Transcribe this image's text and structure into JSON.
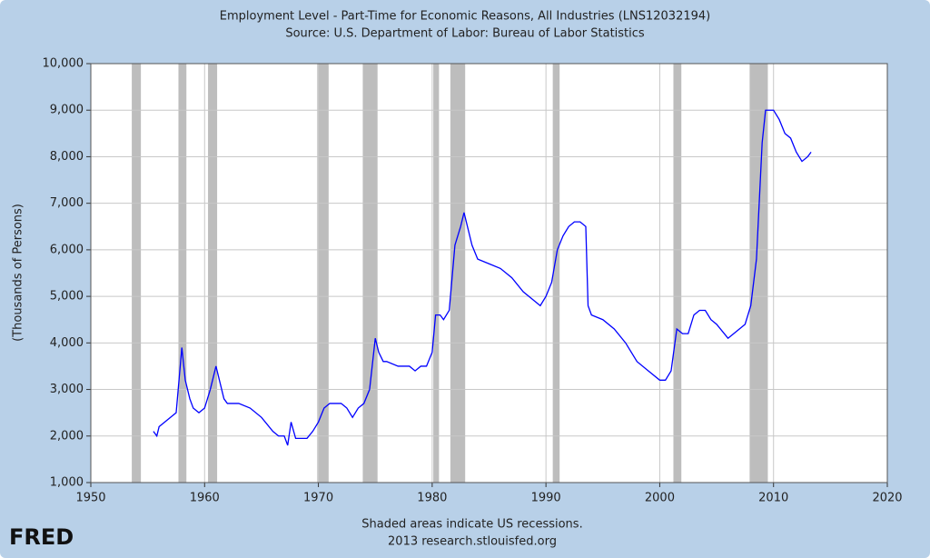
{
  "chart_data": {
    "type": "line",
    "title": "Employment Level - Part-Time for Economic Reasons, All Industries (LNS12032194)",
    "subtitle": "Source: U.S. Department of Labor: Bureau of Labor Statistics",
    "y_label": "(Thousands of Persons)",
    "footnote": "Shaded areas indicate US recessions.",
    "source": "2013 research.stlouisfed.org",
    "logo": "FRED",
    "xlim": [
      1950,
      2020
    ],
    "xticks": [
      1950,
      1960,
      1970,
      1980,
      1990,
      2000,
      2010,
      2020
    ],
    "ylim": [
      1000,
      10000
    ],
    "yticks": [
      {
        "value": 1000,
        "label": "1,000"
      },
      {
        "value": 2000,
        "label": "2,000"
      },
      {
        "value": 3000,
        "label": "3,000"
      },
      {
        "value": 4000,
        "label": "4,000"
      },
      {
        "value": 5000,
        "label": "5,000"
      },
      {
        "value": 6000,
        "label": "6,000"
      },
      {
        "value": 7000,
        "label": "7,000"
      },
      {
        "value": 8000,
        "label": "8,000"
      },
      {
        "value": 9000,
        "label": "9,000"
      },
      {
        "value": 10000,
        "label": "10,000"
      }
    ],
    "grid": true,
    "recession_color": "#bdbdbd",
    "recessions": [
      [
        1953.6,
        1954.4
      ],
      [
        1957.7,
        1958.4
      ],
      [
        1960.3,
        1961.1
      ],
      [
        1969.9,
        1970.9
      ],
      [
        1973.9,
        1975.2
      ],
      [
        1980.1,
        1980.6
      ],
      [
        1981.6,
        1982.9
      ],
      [
        1990.6,
        1991.2
      ],
      [
        2001.2,
        2001.9
      ],
      [
        2007.9,
        2009.5
      ]
    ],
    "series": [
      {
        "name": "LNS12032194",
        "color": "#0000ff",
        "x": [
          1955.5,
          1955.8,
          1956,
          1956.5,
          1957,
          1957.5,
          1958,
          1958.3,
          1958.7,
          1959,
          1959.5,
          1960,
          1960.5,
          1961,
          1961.3,
          1961.7,
          1962,
          1963,
          1964,
          1965,
          1966,
          1966.5,
          1967,
          1967.3,
          1967.6,
          1968,
          1969,
          1969.5,
          1970,
          1970.5,
          1971,
          1972,
          1972.5,
          1973,
          1973.5,
          1974,
          1974.5,
          1975,
          1975.3,
          1975.7,
          1976,
          1977,
          1978,
          1978.5,
          1979,
          1979.5,
          1980,
          1980.3,
          1980.7,
          1981,
          1981.5,
          1982,
          1982.5,
          1982.8,
          1983,
          1983.5,
          1984,
          1985,
          1986,
          1987,
          1988,
          1989,
          1989.5,
          1990,
          1990.5,
          1991,
          1991.5,
          1992,
          1992.5,
          1993,
          1993.5,
          1993.7,
          1994,
          1995,
          1996,
          1997,
          1998,
          1999,
          2000,
          2000.5,
          2001,
          2001.5,
          2002,
          2002.5,
          2003,
          2003.5,
          2004,
          2004.5,
          2005,
          2006,
          2006.5,
          2007,
          2007.5,
          2008,
          2008.5,
          2009,
          2009.3,
          2010,
          2010.5,
          2011,
          2011.5,
          2012,
          2012.5,
          2013,
          2013.3
        ],
        "values": [
          2100,
          2000,
          2200,
          2300,
          2400,
          2500,
          3900,
          3200,
          2800,
          2600,
          2500,
          2600,
          3000,
          3500,
          3200,
          2800,
          2700,
          2700,
          2600,
          2400,
          2100,
          2000,
          2000,
          1800,
          2300,
          1950,
          1950,
          2100,
          2300,
          2600,
          2700,
          2700,
          2600,
          2400,
          2600,
          2700,
          3000,
          4100,
          3800,
          3600,
          3600,
          3500,
          3500,
          3400,
          3500,
          3500,
          3800,
          4600,
          4600,
          4500,
          4700,
          6100,
          6500,
          6800,
          6600,
          6100,
          5800,
          5700,
          5600,
          5400,
          5100,
          4900,
          4800,
          5000,
          5300,
          6000,
          6300,
          6500,
          6600,
          6600,
          6500,
          4800,
          4600,
          4500,
          4300,
          4000,
          3600,
          3400,
          3200,
          3200,
          3400,
          4300,
          4200,
          4200,
          4600,
          4700,
          4700,
          4500,
          4400,
          4100,
          4200,
          4300,
          4400,
          4800,
          5800,
          8300,
          9000,
          9000,
          8800,
          8500,
          8400,
          8100,
          7900,
          8000,
          8100
        ]
      }
    ]
  }
}
